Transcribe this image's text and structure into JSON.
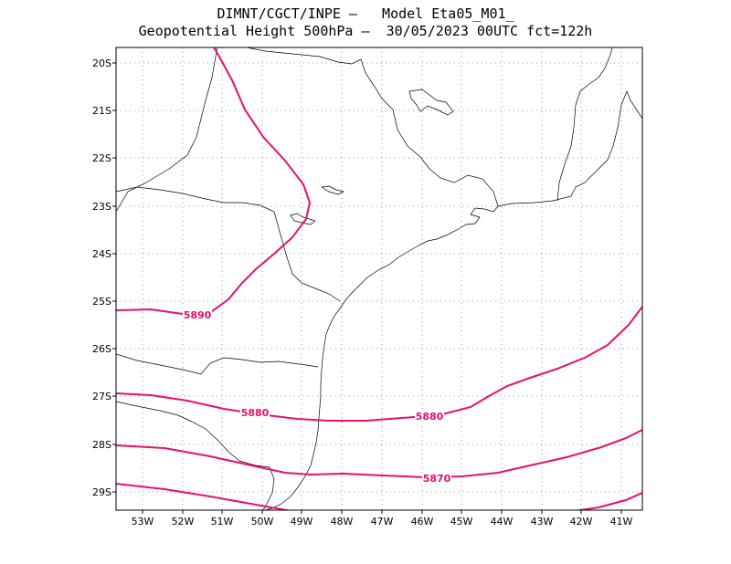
{
  "header": {
    "line1": "DIMNT/CGCT/INPE –   Model Eta05_M01_",
    "line2": "Geopotential Height 500hPa –  30/05/2023 00UTC fct=122h"
  },
  "axes": {
    "lat_labels": [
      "20S",
      "21S",
      "22S",
      "23S",
      "24S",
      "25S",
      "26S",
      "27S",
      "28S",
      "29S"
    ],
    "lon_labels": [
      "53W",
      "52W",
      "51W",
      "50W",
      "49W",
      "48W",
      "47W",
      "46W",
      "45W",
      "44W",
      "43W",
      "42W",
      "41W"
    ]
  },
  "contours": [
    {
      "value": "5890"
    },
    {
      "value": "5880"
    },
    {
      "value": "5880"
    },
    {
      "value": "5870"
    }
  ],
  "colors": {
    "contour": "#e8106a",
    "coast": "#000000",
    "grid": "#999999"
  }
}
